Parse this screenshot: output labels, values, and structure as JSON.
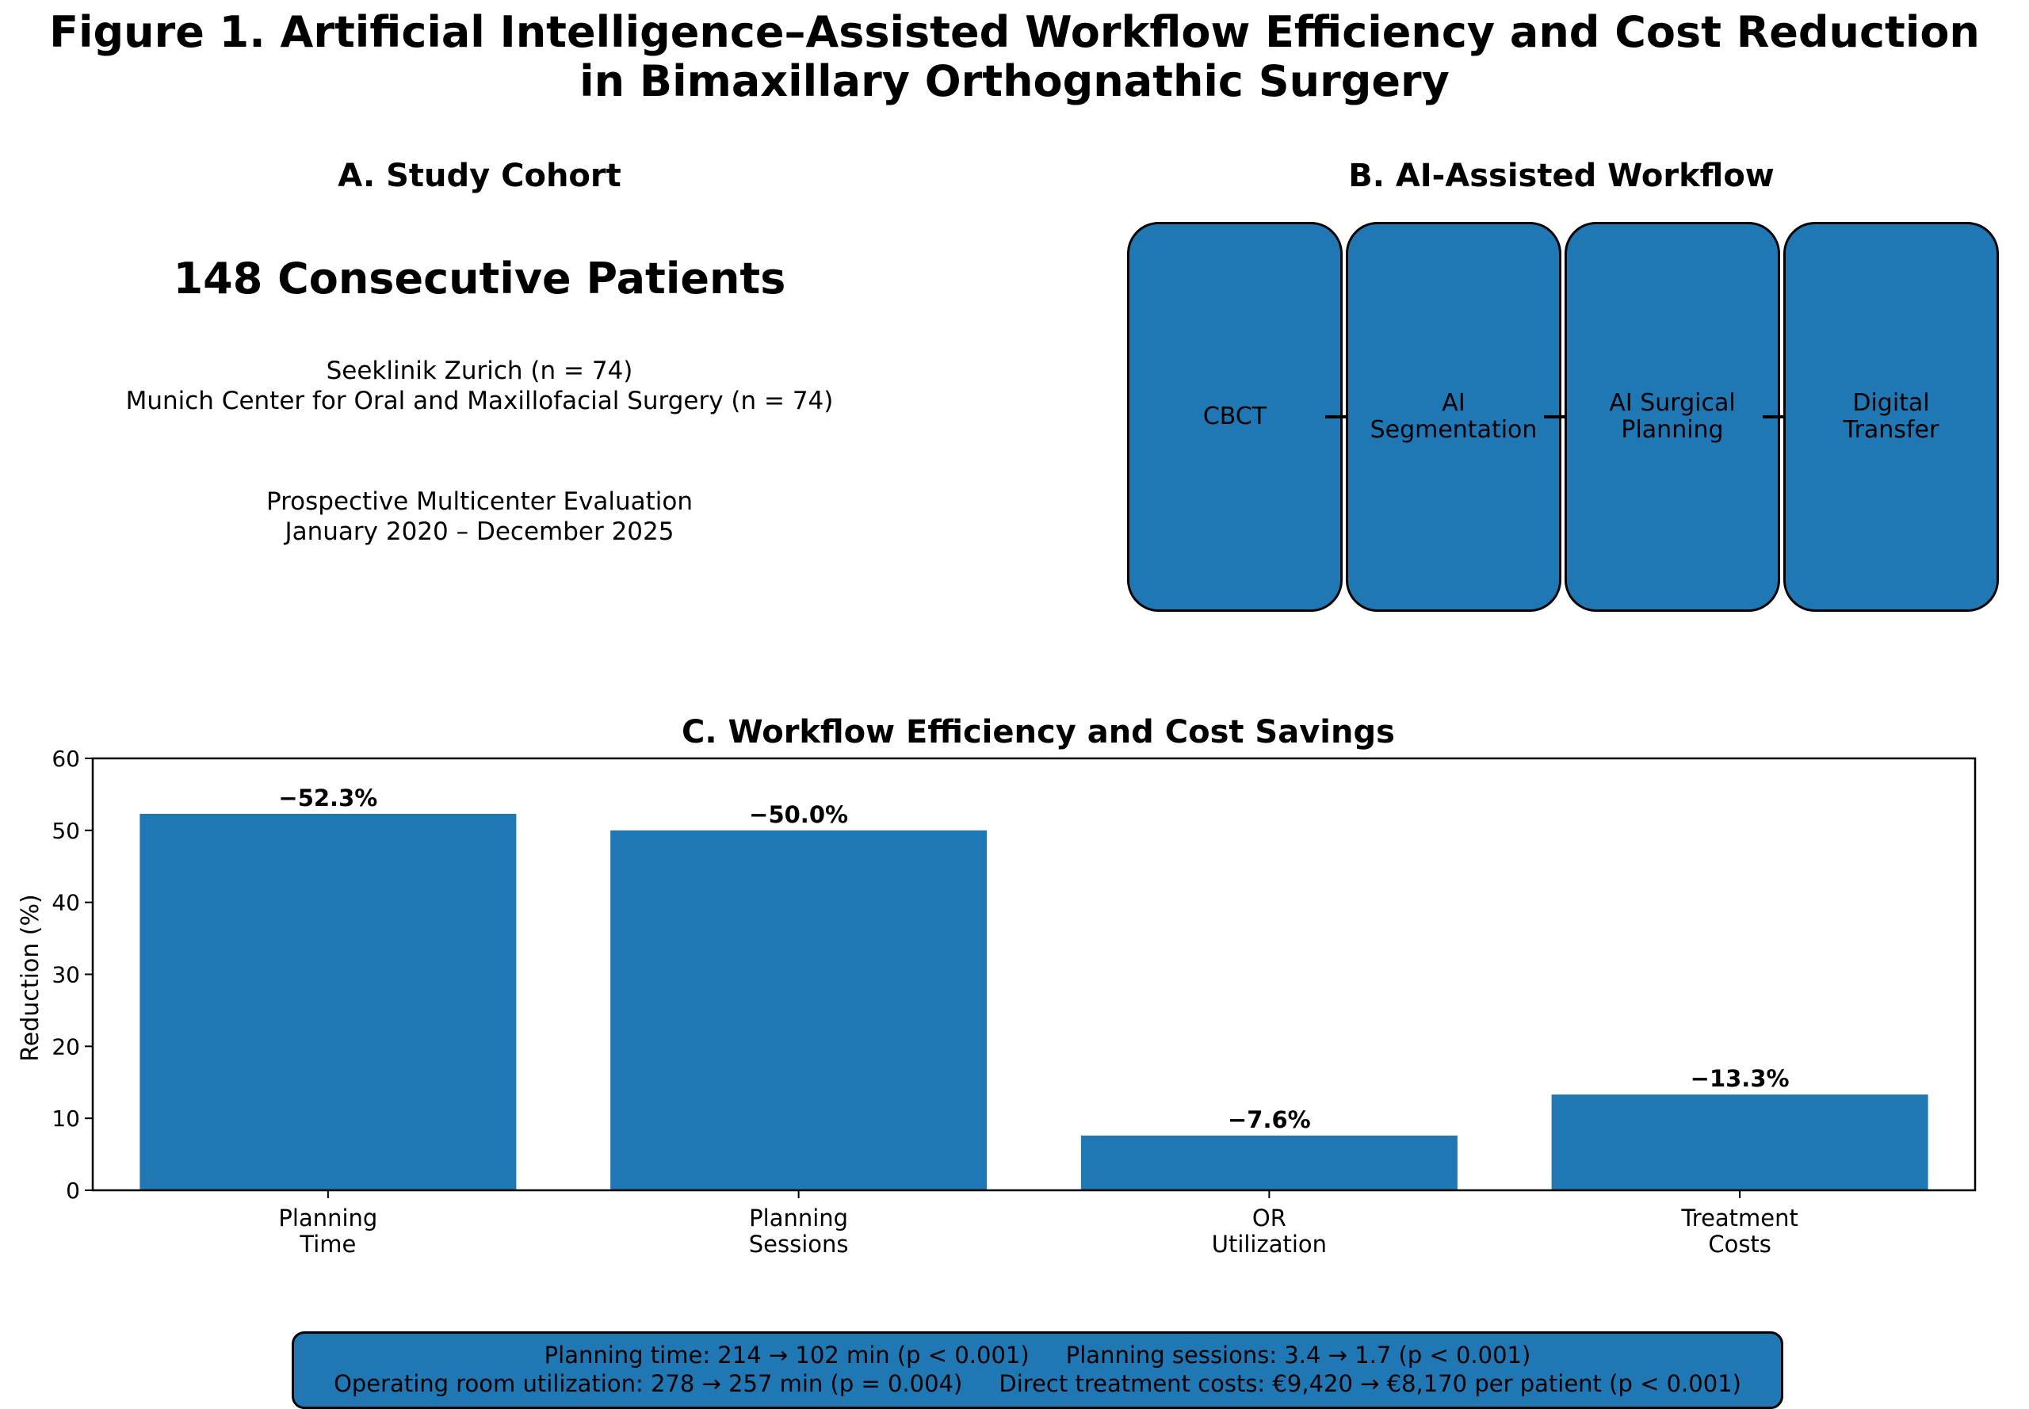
{
  "figure_title": [
    "Figure 1. Artificial Intelligence–Assisted Workflow Efficiency and Cost Reduction",
    "in Bimaxillary Orthognathic Surgery"
  ],
  "panel_a": {
    "title": "A. Study Cohort",
    "count": "148 Consecutive Patients",
    "sites": [
      "Seeklinik Zurich (n = 74)",
      "Munich Center for Oral and Maxillofacial Surgery (n = 74)"
    ],
    "design": [
      "Prospective Multicenter Evaluation",
      "January 2020 – December 2025"
    ]
  },
  "panel_b": {
    "title": "B. AI-Assisted Workflow",
    "steps": [
      "CBCT",
      "AI\nSegmentation",
      "AI Surgical\nPlanning",
      "Digital\nTransfer"
    ],
    "box_color": "#1f77b4"
  },
  "chart_data": {
    "type": "bar",
    "title": "C. Workflow Efficiency and Cost Savings",
    "categories": [
      "Planning\nTime",
      "Planning\nSessions",
      "OR\nUtilization",
      "Treatment\nCosts"
    ],
    "values": [
      52.3,
      50.0,
      7.6,
      13.3
    ],
    "data_labels": [
      "−52.3%",
      "−50.0%",
      "−7.6%",
      "−13.3%"
    ],
    "xlabel": "",
    "ylabel": "Reduction (%)",
    "ylim": [
      0,
      60
    ],
    "yticks": [
      0,
      10,
      20,
      30,
      40,
      50,
      60
    ],
    "grid": false,
    "bar_color": "#1f77b4"
  },
  "summary": [
    "Planning time: 214 → 102 min (p < 0.001)     Planning sessions: 3.4 → 1.7 (p < 0.001)",
    "Operating room utilization: 278 → 257 min (p = 0.004)     Direct treatment costs: €9,420 → €8,170 per patient (p < 0.001)"
  ]
}
